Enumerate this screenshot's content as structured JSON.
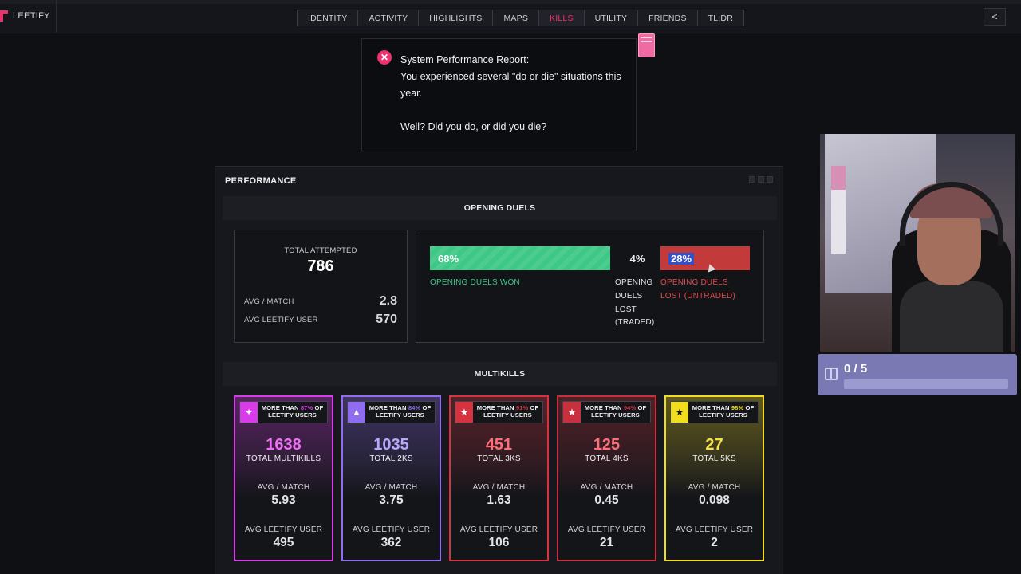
{
  "nav": {
    "brand": "LEETIFY",
    "tabs": [
      {
        "label": "IDENTITY",
        "active": false
      },
      {
        "label": "ACTIVITY",
        "active": false
      },
      {
        "label": "HIGHLIGHTS",
        "active": false
      },
      {
        "label": "MAPS",
        "active": false
      },
      {
        "label": "KILLS",
        "active": true
      },
      {
        "label": "UTILITY",
        "active": false
      },
      {
        "label": "FRIENDS",
        "active": false
      },
      {
        "label": "TL;DR",
        "active": false
      }
    ],
    "share_icon": "share-icon"
  },
  "popup": {
    "title": "System Performance Report:",
    "line1": "You experienced several \"do or die\" situations this year.",
    "line2": "Well? Did you do, or did you die?"
  },
  "performance": {
    "title": "PERFORMANCE",
    "opening_duels": {
      "heading": "OPENING DUELS",
      "total_attempted_label": "TOTAL ATTEMPTED",
      "total_attempted": "786",
      "avg_match_label": "AVG / MATCH",
      "avg_match": "2.8",
      "avg_user_label": "AVG LEETIFY USER",
      "avg_user": "570",
      "won_pct": "68%",
      "won_label": "OPENING DUELS WON",
      "traded_pct": "4%",
      "traded_label": "OPENING DUELS LOST (TRADED)",
      "lost_pct": "28%",
      "lost_label": "OPENING DUELS LOST (UNTRADED)"
    },
    "multikills": {
      "heading": "MULTIKILLS",
      "cards": [
        {
          "badge": "MORE THAN 87% OF LEETIFY USERS",
          "pct": "87%",
          "value": "1638",
          "label": "TOTAL MULTIKILLS",
          "avg_match_label": "AVG / MATCH",
          "avg_match": "5.93",
          "avg_user_label": "AVG LEETIFY USER",
          "avg_user": "495",
          "color": "#d83be8",
          "icon": "sparkle-icon"
        },
        {
          "badge": "MORE THAN 84% OF LEETIFY USERS",
          "pct": "84%",
          "value": "1035",
          "label": "TOTAL 2KS",
          "avg_match_label": "AVG / MATCH",
          "avg_match": "3.75",
          "avg_user_label": "AVG LEETIFY USER",
          "avg_user": "362",
          "color": "#8f6cf0",
          "icon": "triangle-icon"
        },
        {
          "badge": "MORE THAN 91% OF LEETIFY USERS",
          "pct": "91%",
          "value": "451",
          "label": "TOTAL 3KS",
          "avg_match_label": "AVG / MATCH",
          "avg_match": "1.63",
          "avg_user_label": "AVG LEETIFY USER",
          "avg_user": "106",
          "color": "#d6323f",
          "icon": "star-icon"
        },
        {
          "badge": "MORE THAN 94% OF LEETIFY USERS",
          "pct": "94%",
          "value": "125",
          "label": "TOTAL 4KS",
          "avg_match_label": "AVG / MATCH",
          "avg_match": "0.45",
          "avg_user_label": "AVG LEETIFY USER",
          "avg_user": "21",
          "color": "#c7303c",
          "icon": "star-icon"
        },
        {
          "badge": "MORE THAN 98% OF LEETIFY USERS",
          "pct": "98%",
          "value": "27",
          "label": "TOTAL 5KS",
          "avg_match_label": "AVG / MATCH",
          "avg_match": "0.098",
          "avg_user_label": "AVG LEETIFY USER",
          "avg_user": "2",
          "color": "#f2dc1e",
          "icon": "star-icon"
        }
      ]
    }
  },
  "goal_widget": {
    "text": "0 / 5",
    "progress": 0
  }
}
